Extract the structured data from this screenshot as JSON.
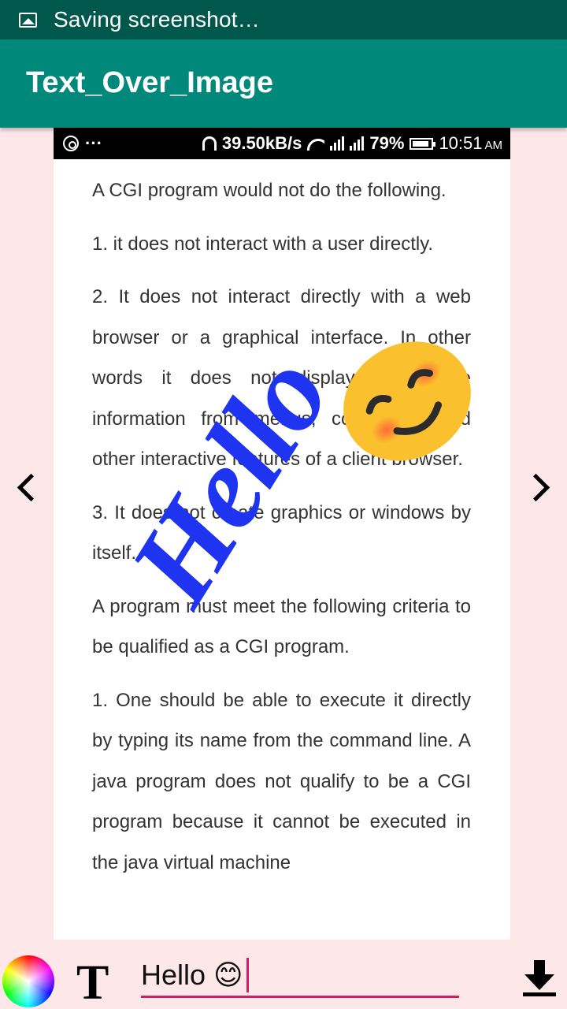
{
  "system_status": {
    "notification": "Saving screenshot…",
    "icon": "image-icon"
  },
  "app_bar": {
    "title": "Text_Over_Image"
  },
  "screenshot": {
    "status_bar": {
      "left_dots": "···",
      "speed": "39.50kB/s",
      "sim1": "1",
      "sim2": "2",
      "battery": "79%",
      "time": "10:51",
      "ampm": "AM"
    },
    "paragraphs": [
      "A CGI program would not do the following.",
      "1. it does not interact with a user directly.",
      "2. It does not interact directly with a web browser or a graphical interface. In other words it does not display or receive information from menus, commands and other interactive features of a client browser.",
      "3. It does not create graphics or windows by itself.",
      "A program must meet the following criteria to be qualified as a CGI program.",
      "1. One should be able to execute it directly by typing its name from the command line. A java program does not qualify to be a CGI program because it cannot be executed in the java virtual machine"
    ]
  },
  "overlay": {
    "text": "Hello",
    "color": "#1f34f0",
    "emoji": "smiling-face-emoji"
  },
  "editor": {
    "input_value": "Hello 😊",
    "text_tool_label": "T",
    "accent": "#d81b60"
  },
  "colors": {
    "status_bar": "#00574b",
    "app_bar": "#00897b",
    "background": "#fde7e9"
  }
}
